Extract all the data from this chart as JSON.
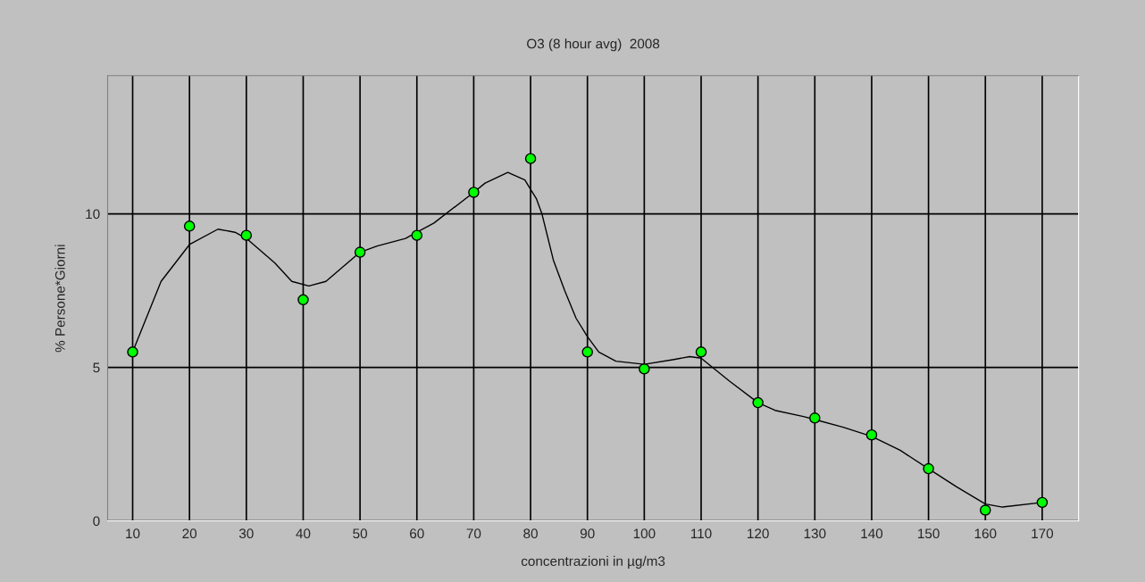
{
  "chart_data": {
    "type": "scatter",
    "title": "O3 (8 hour avg)  2008",
    "xlabel": "concentrazioni in µg/m3",
    "ylabel": "% Persone*Giorni",
    "xlim": [
      5.6,
      176.4
    ],
    "xticks": [
      10,
      20,
      30,
      40,
      50,
      60,
      70,
      80,
      90,
      100,
      110,
      120,
      130,
      140,
      150,
      160,
      170
    ],
    "ylim": [
      0,
      14.5
    ],
    "yticks": [
      0,
      5,
      10
    ],
    "grid": true,
    "legend": false,
    "series": [
      {
        "type": "line",
        "color": "#000000",
        "marker": "none",
        "line_style": "solid",
        "x": [
          10,
          15,
          20,
          25,
          28,
          30,
          35,
          38,
          41,
          44,
          50,
          53,
          58,
          60,
          63,
          70,
          72,
          76,
          79,
          80,
          81,
          82,
          84,
          86,
          88,
          90,
          92,
          95,
          100,
          105,
          108,
          110,
          115,
          120,
          123,
          128,
          130,
          135,
          140,
          145,
          150,
          155,
          160,
          163,
          170
        ],
        "values": [
          5.5,
          7.8,
          9.0,
          9.5,
          9.4,
          9.2,
          8.4,
          7.8,
          7.65,
          7.8,
          8.75,
          8.95,
          9.2,
          9.4,
          9.7,
          10.7,
          11.0,
          11.35,
          11.1,
          10.8,
          10.5,
          10.0,
          8.5,
          7.5,
          6.6,
          6.0,
          5.5,
          5.2,
          5.1,
          5.25,
          5.35,
          5.3,
          4.55,
          3.85,
          3.6,
          3.4,
          3.3,
          3.05,
          2.75,
          2.3,
          1.7,
          1.1,
          0.55,
          0.45,
          0.6
        ]
      },
      {
        "color": "#00ff00",
        "marker": "circle",
        "x": [
          10,
          20,
          30,
          40,
          50,
          60,
          70,
          80,
          90,
          100,
          110,
          120,
          130,
          140,
          150,
          160,
          170
        ],
        "values": [
          5.5,
          9.6,
          9.3,
          7.2,
          8.75,
          9.3,
          10.7,
          11.8,
          5.5,
          4.95,
          5.5,
          3.85,
          3.35,
          2.8,
          1.7,
          0.35,
          0.6
        ]
      }
    ]
  }
}
